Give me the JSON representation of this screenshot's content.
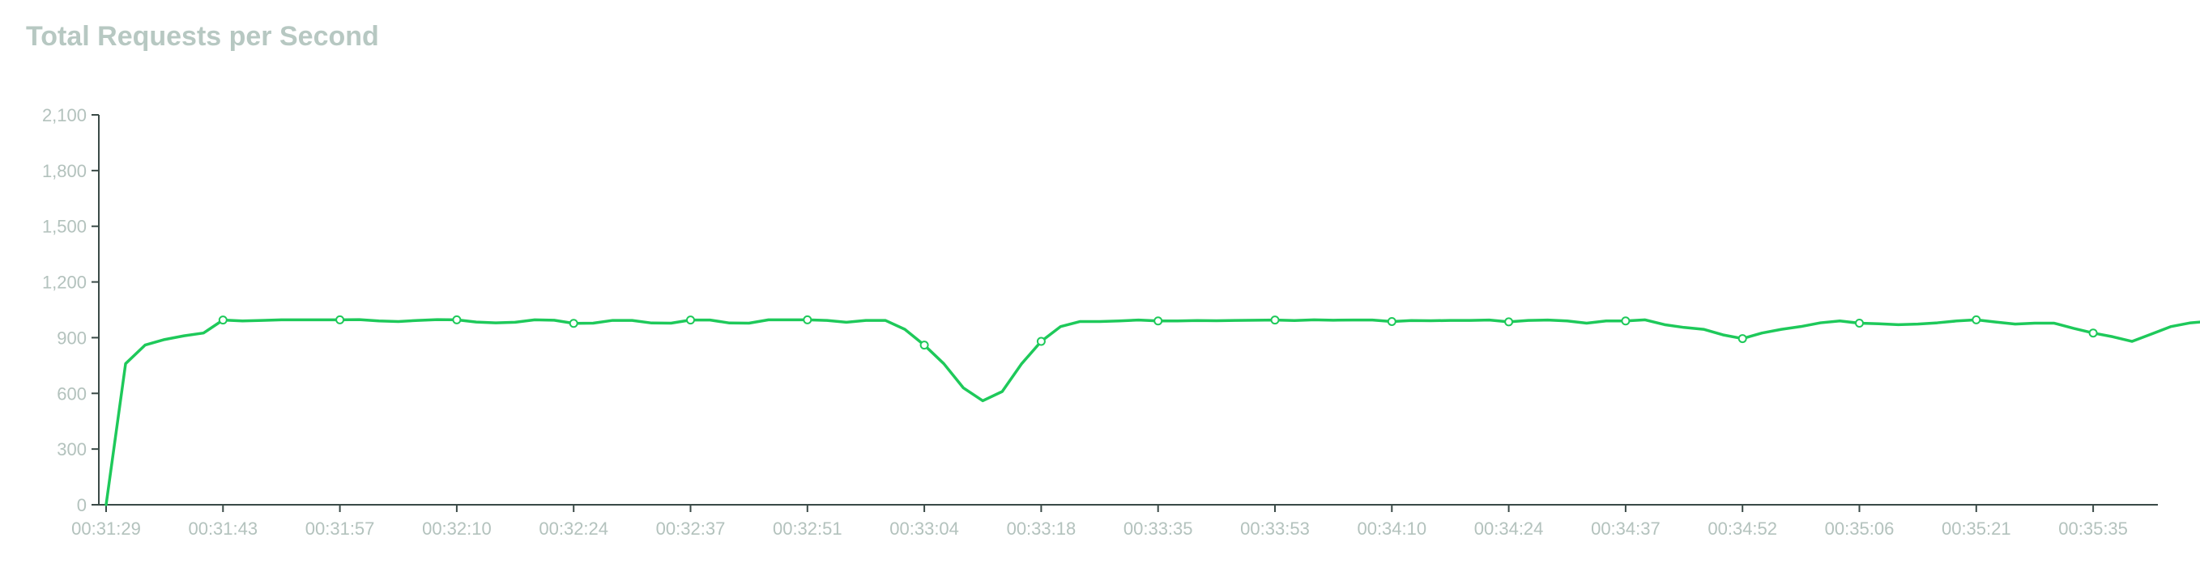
{
  "colors": {
    "series": "#1ec95a",
    "axis": "#3a4a47",
    "tick_text": "#b3c2bd",
    "title": "#b7c8c2"
  },
  "chart_data": {
    "type": "line",
    "title": "Total Requests per Second",
    "xlabel": "",
    "ylabel": "",
    "ylim": [
      0,
      2100
    ],
    "yticks": [
      0,
      300,
      600,
      900,
      1200,
      1500,
      1800,
      2100
    ],
    "ytick_labels": [
      "0",
      "300",
      "600",
      "900",
      "1,200",
      "1,500",
      "1,800",
      "2,100"
    ],
    "xticks": [
      "00:31:29",
      "00:31:43",
      "00:31:57",
      "00:32:10",
      "00:32:24",
      "00:32:37",
      "00:32:51",
      "00:33:04",
      "00:33:18",
      "00:33:35",
      "00:33:53",
      "00:34:10",
      "00:34:24",
      "00:34:37",
      "00:34:52",
      "00:35:06",
      "00:35:21",
      "00:35:35"
    ],
    "grid": false,
    "legend": "none",
    "series": [
      {
        "values": [
          0,
          760,
          860,
          890,
          910,
          925,
          995,
          990,
          993,
          996,
          996,
          996,
          996,
          997,
          990,
          987,
          993,
          997,
          996,
          984,
          980,
          983,
          996,
          994,
          977,
          978,
          993,
          993,
          979,
          978,
          995,
          995,
          979,
          978,
          996,
          996,
          996,
          993,
          983,
          993,
          993,
          945,
          860,
          760,
          630,
          560,
          610,
          760,
          880,
          960,
          987,
          987,
          990,
          995,
          990,
          990,
          992,
          991,
          993,
          994,
          995,
          992,
          996,
          994,
          995,
          995,
          987,
          992,
          991,
          993,
          993,
          995,
          985,
          993,
          995,
          990,
          978,
          990,
          990,
          996,
          970,
          955,
          945,
          915,
          895,
          925,
          945,
          960,
          980,
          990,
          978,
          975,
          970,
          973,
          980,
          990,
          996,
          984,
          973,
          978,
          978,
          950,
          925,
          905,
          880,
          920,
          960,
          980,
          988,
          987,
          993,
          996,
          996
        ],
        "marker_indices": [
          6,
          12,
          18,
          24,
          30,
          36,
          42,
          48,
          54,
          60,
          66,
          72,
          78,
          84,
          90,
          96,
          102,
          108
        ]
      }
    ]
  }
}
